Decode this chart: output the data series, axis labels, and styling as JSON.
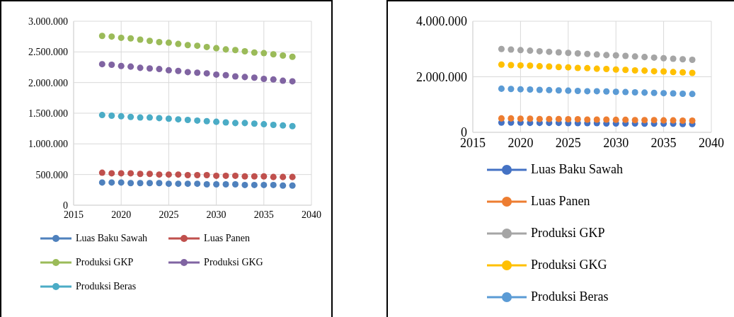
{
  "chart_data": [
    {
      "type": "scatter",
      "x": [
        2018,
        2019,
        2020,
        2021,
        2022,
        2023,
        2024,
        2025,
        2026,
        2027,
        2028,
        2029,
        2030,
        2031,
        2032,
        2033,
        2034,
        2035,
        2036,
        2037,
        2038
      ],
      "series": [
        {
          "name": "Luas Baku Sawah",
          "color": "#4f81bd",
          "values": [
            370000,
            370000,
            370000,
            360000,
            360000,
            360000,
            360000,
            350000,
            350000,
            350000,
            350000,
            340000,
            340000,
            340000,
            340000,
            330000,
            330000,
            330000,
            330000,
            320000,
            320000
          ]
        },
        {
          "name": "Luas Panen",
          "color": "#c0504d",
          "values": [
            530000,
            520000,
            520000,
            520000,
            510000,
            510000,
            500000,
            500000,
            500000,
            490000,
            490000,
            490000,
            480000,
            480000,
            480000,
            470000,
            470000,
            470000,
            460000,
            460000,
            460000
          ]
        },
        {
          "name": "Produksi GKP",
          "color": "#9bbb59",
          "values": [
            2760000,
            2750000,
            2730000,
            2720000,
            2700000,
            2680000,
            2660000,
            2650000,
            2630000,
            2610000,
            2600000,
            2580000,
            2560000,
            2540000,
            2530000,
            2510000,
            2490000,
            2480000,
            2460000,
            2440000,
            2420000
          ]
        },
        {
          "name": "Produksi GKG",
          "color": "#8064a2",
          "values": [
            2300000,
            2290000,
            2270000,
            2260000,
            2240000,
            2230000,
            2220000,
            2200000,
            2190000,
            2170000,
            2160000,
            2150000,
            2130000,
            2120000,
            2100000,
            2090000,
            2080000,
            2060000,
            2050000,
            2030000,
            2020000
          ]
        },
        {
          "name": "Produksi Beras",
          "color": "#4bacc6",
          "values": [
            1470000,
            1460000,
            1450000,
            1440000,
            1430000,
            1430000,
            1420000,
            1410000,
            1400000,
            1390000,
            1380000,
            1370000,
            1360000,
            1350000,
            1340000,
            1340000,
            1330000,
            1320000,
            1310000,
            1300000,
            1290000
          ]
        }
      ],
      "xlim": [
        2015,
        2040
      ],
      "xticks": [
        2015,
        2020,
        2025,
        2030,
        2035,
        2040
      ],
      "ylim": [
        0,
        3000000
      ],
      "yticks": [
        {
          "value": 0,
          "label": "0"
        },
        {
          "value": 500000,
          "label": "500.000"
        },
        {
          "value": 1000000,
          "label": "1.000.000"
        },
        {
          "value": 1500000,
          "label": "1.500.000"
        },
        {
          "value": 2000000,
          "label": "2.000.000"
        },
        {
          "value": 2500000,
          "label": "2.500.000"
        },
        {
          "value": 3000000,
          "label": "3.000.000"
        }
      ],
      "grid": true,
      "legend": "bottom",
      "marker": "circle"
    },
    {
      "type": "scatter",
      "x": [
        2018,
        2019,
        2020,
        2021,
        2022,
        2023,
        2024,
        2025,
        2026,
        2027,
        2028,
        2029,
        2030,
        2031,
        2032,
        2033,
        2034,
        2035,
        2036,
        2037,
        2038
      ],
      "series": [
        {
          "name": "Luas Baku Sawah",
          "color": "#4472c4",
          "values": [
            350000,
            350000,
            350000,
            340000,
            340000,
            340000,
            340000,
            330000,
            330000,
            330000,
            330000,
            320000,
            320000,
            320000,
            320000,
            310000,
            310000,
            310000,
            310000,
            300000,
            300000
          ]
        },
        {
          "name": "Luas Panen",
          "color": "#ed7d31",
          "values": [
            500000,
            500000,
            490000,
            490000,
            480000,
            480000,
            480000,
            470000,
            470000,
            460000,
            460000,
            460000,
            450000,
            450000,
            440000,
            440000,
            440000,
            430000,
            430000,
            420000,
            420000
          ]
        },
        {
          "name": "Produksi GKP",
          "color": "#a5a5a5",
          "values": [
            3000000,
            2980000,
            2960000,
            2940000,
            2920000,
            2900000,
            2880000,
            2860000,
            2840000,
            2820000,
            2800000,
            2780000,
            2770000,
            2750000,
            2730000,
            2710000,
            2690000,
            2670000,
            2650000,
            2630000,
            2610000
          ]
        },
        {
          "name": "Produksi GKG",
          "color": "#ffc000",
          "values": [
            2440000,
            2420000,
            2410000,
            2400000,
            2380000,
            2370000,
            2350000,
            2340000,
            2320000,
            2310000,
            2290000,
            2280000,
            2260000,
            2250000,
            2230000,
            2220000,
            2200000,
            2190000,
            2170000,
            2160000,
            2140000
          ]
        },
        {
          "name": "Produksi Beras",
          "color": "#5b9bd5",
          "values": [
            1570000,
            1560000,
            1550000,
            1540000,
            1530000,
            1520000,
            1510000,
            1500000,
            1490000,
            1480000,
            1480000,
            1470000,
            1460000,
            1450000,
            1440000,
            1430000,
            1420000,
            1410000,
            1400000,
            1390000,
            1380000
          ]
        }
      ],
      "xlim": [
        2015,
        2040
      ],
      "xticks": [
        2015,
        2020,
        2025,
        2030,
        2035,
        2040
      ],
      "ylim": [
        0,
        4000000
      ],
      "yticks": [
        {
          "value": 0,
          "label": "0"
        },
        {
          "value": 2000000,
          "label": "2.000.000"
        },
        {
          "value": 4000000,
          "label": "4.000.000"
        }
      ],
      "grid": true,
      "legend": "bottom",
      "marker": "circle"
    }
  ]
}
